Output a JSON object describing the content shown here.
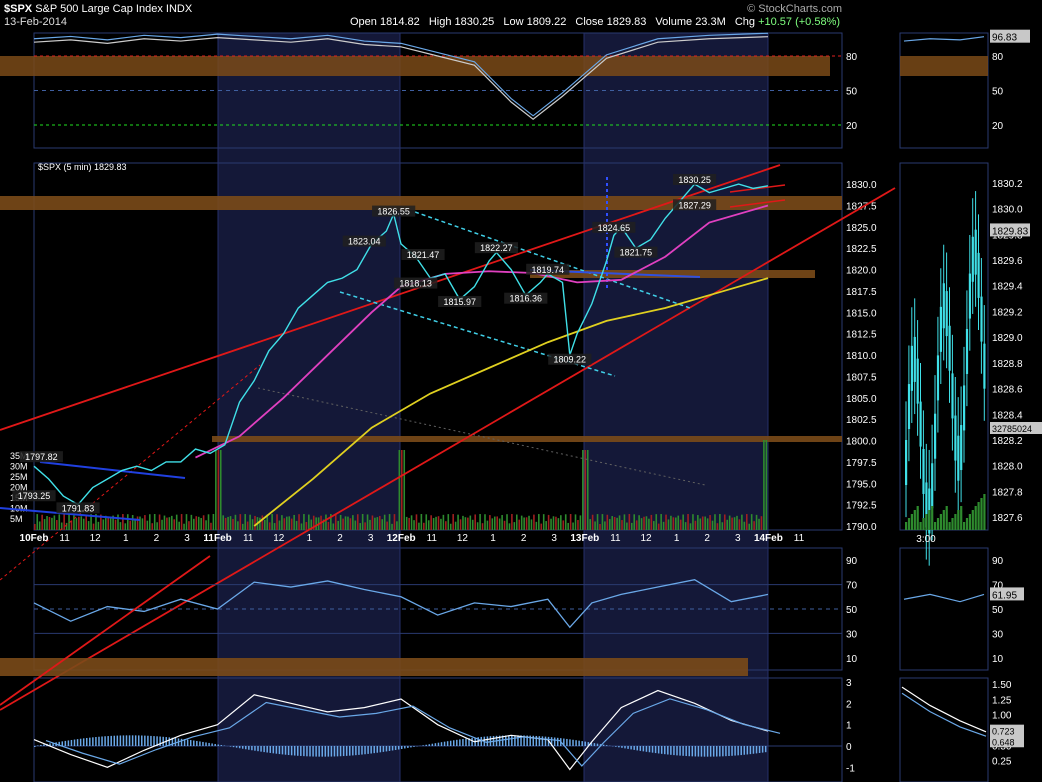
{
  "header": {
    "symbol": "$SPX",
    "name": "S&P 500 Large Cap Index",
    "exchange": "INDX",
    "date": "13-Feb-2014",
    "credit": "© StockCharts.com",
    "open_label": "Open",
    "open": "1814.82",
    "high_label": "High",
    "high": "1830.25",
    "low_label": "Low",
    "low": "1809.22",
    "close_label": "Close",
    "close": "1829.83",
    "volume_label": "Volume",
    "volume": "23.3M",
    "chg_label": "Chg",
    "chg": "+10.57 (+0.58%)"
  },
  "colors": {
    "background": "#000000",
    "price_line": "#40e0e8",
    "ma_fast": "#e040c0",
    "ma_slow": "#e0d020",
    "trendline": "#e01818",
    "resistance_band": "#7a4a18",
    "indicator": "#6aa8e8",
    "volume": "#2e8b2e",
    "grid": "#1a2a5a",
    "session_shade": "#141838"
  },
  "chart_data": [
    {
      "panel": "stochastic-top",
      "type": "line",
      "yticks": [
        20,
        50,
        80
      ],
      "ylim": [
        0,
        100
      ],
      "last_value": "96.83",
      "x": [
        0,
        0.05,
        0.1,
        0.15,
        0.2,
        0.25,
        0.3,
        0.35,
        0.4,
        0.45,
        0.5,
        0.55,
        0.6,
        0.65,
        0.68,
        0.72,
        0.78,
        0.85,
        0.92,
        1.0
      ],
      "values": [
        92,
        94,
        91,
        95,
        93,
        96,
        94,
        92,
        95,
        90,
        88,
        80,
        72,
        40,
        25,
        45,
        78,
        92,
        95,
        96.8
      ]
    },
    {
      "panel": "price",
      "type": "line",
      "title": "$SPX (5 min) 1829.83",
      "ylim": [
        1790,
        1832
      ],
      "yticks": [
        1790.0,
        1792.5,
        1795.0,
        1797.5,
        1800.0,
        1802.5,
        1805.0,
        1807.5,
        1810.0,
        1812.5,
        1815.0,
        1817.5,
        1820.0,
        1822.5,
        1825.0,
        1827.5,
        1830.0
      ],
      "xticks": [
        "10Feb",
        "11",
        "12",
        "1",
        "2",
        "3",
        "11Feb",
        "11",
        "12",
        "1",
        "2",
        "3",
        "12Feb",
        "11",
        "12",
        "1",
        "2",
        "3",
        "13Feb",
        "11",
        "12",
        "1",
        "2",
        "3",
        "14Feb",
        "11"
      ],
      "annotations": [
        {
          "label": "1797.82",
          "x": 0.01,
          "y": 1797.82
        },
        {
          "label": "1793.25",
          "x": 0.0,
          "y": 1793.25
        },
        {
          "label": "1791.83",
          "x": 0.06,
          "y": 1791.83
        },
        {
          "label": "1823.04",
          "x": 0.45,
          "y": 1823.04
        },
        {
          "label": "1826.55",
          "x": 0.49,
          "y": 1826.55
        },
        {
          "label": "1821.47",
          "x": 0.53,
          "y": 1821.47
        },
        {
          "label": "1818.13",
          "x": 0.52,
          "y": 1818.13
        },
        {
          "label": "1815.97",
          "x": 0.58,
          "y": 1815.97
        },
        {
          "label": "1822.27",
          "x": 0.63,
          "y": 1822.27
        },
        {
          "label": "1819.74",
          "x": 0.7,
          "y": 1819.74
        },
        {
          "label": "1816.36",
          "x": 0.67,
          "y": 1816.36
        },
        {
          "label": "1809.22",
          "x": 0.73,
          "y": 1809.22
        },
        {
          "label": "1824.65",
          "x": 0.79,
          "y": 1824.65
        },
        {
          "label": "1821.75",
          "x": 0.82,
          "y": 1821.75
        },
        {
          "label": "1830.25",
          "x": 0.9,
          "y": 1830.25
        },
        {
          "label": "1827.29",
          "x": 0.9,
          "y": 1827.29
        }
      ],
      "series": [
        {
          "type": "line",
          "x": [
            0.0,
            0.02,
            0.04,
            0.06,
            0.08,
            0.1,
            0.12,
            0.14,
            0.16,
            0.18,
            0.2,
            0.22,
            0.24,
            0.26,
            0.28,
            0.3,
            0.32,
            0.34,
            0.36,
            0.38,
            0.4,
            0.42,
            0.44,
            0.46,
            0.48,
            0.49,
            0.5,
            0.52,
            0.54,
            0.56,
            0.58,
            0.6,
            0.62,
            0.63,
            0.65,
            0.67,
            0.69,
            0.7,
            0.72,
            0.73,
            0.74,
            0.76,
            0.78,
            0.79,
            0.8,
            0.82,
            0.84,
            0.86,
            0.88,
            0.9,
            0.92,
            0.94,
            0.96,
            0.98,
            1.0
          ],
          "values": [
            1797.0,
            1795.5,
            1793.5,
            1792.5,
            1794.5,
            1795.5,
            1796.5,
            1797.0,
            1796.5,
            1797.5,
            1797.5,
            1799.0,
            1798.5,
            1799.5,
            1804.5,
            1807.0,
            1810.5,
            1812.5,
            1815.5,
            1817.0,
            1818.5,
            1819.0,
            1820.0,
            1823.0,
            1824.5,
            1826.5,
            1823.0,
            1821.5,
            1819.0,
            1819.5,
            1816.5,
            1818.0,
            1821.0,
            1822.0,
            1820.0,
            1817.0,
            1818.5,
            1819.5,
            1818.5,
            1810.0,
            1812.5,
            1816.0,
            1821.0,
            1824.0,
            1825.0,
            1822.5,
            1823.5,
            1826.0,
            1828.0,
            1830.0,
            1829.0,
            1829.5,
            1830.0,
            1829.5,
            1829.8
          ]
        },
        {
          "type": "line",
          "x": [
            0.22,
            0.28,
            0.34,
            0.4,
            0.46,
            0.5,
            0.56,
            0.62,
            0.68,
            0.74,
            0.8,
            0.86,
            0.92,
            1.0
          ],
          "values": [
            1798.0,
            1800.5,
            1805.0,
            1810.0,
            1815.0,
            1818.0,
            1819.5,
            1819.8,
            1819.6,
            1818.5,
            1818.8,
            1821.5,
            1825.5,
            1827.5
          ]
        },
        {
          "type": "line",
          "x": [
            0.3,
            0.38,
            0.46,
            0.54,
            0.62,
            0.7,
            0.78,
            0.86,
            0.94,
            1.0
          ],
          "values": [
            1790.0,
            1795.5,
            1801.5,
            1805.5,
            1808.5,
            1811.5,
            1814.0,
            1815.5,
            1817.5,
            1819.0
          ]
        }
      ],
      "volume_yticks": [
        "5M",
        "10M",
        "15M",
        "20M",
        "25M",
        "30M",
        "35M"
      ]
    },
    {
      "panel": "intraday-right",
      "type": "bar",
      "yticks": [
        1827.6,
        1827.8,
        1828.0,
        1828.2,
        1828.4,
        1828.6,
        1828.8,
        1829.0,
        1829.2,
        1829.4,
        1829.6,
        1829.8,
        1830.0,
        1830.2
      ],
      "last_value": "1829.83",
      "volume_value": "32785024",
      "xtick": "3:00"
    },
    {
      "panel": "rsi",
      "type": "line",
      "yticks": [
        10,
        30,
        50,
        70,
        90
      ],
      "ylim": [
        0,
        100
      ],
      "last_value": "61.95",
      "x": [
        0.0,
        0.05,
        0.1,
        0.15,
        0.2,
        0.25,
        0.3,
        0.35,
        0.4,
        0.45,
        0.5,
        0.55,
        0.6,
        0.65,
        0.7,
        0.73,
        0.76,
        0.8,
        0.85,
        0.9,
        0.95,
        1.0
      ],
      "values": [
        55,
        40,
        52,
        48,
        58,
        50,
        72,
        68,
        73,
        66,
        60,
        45,
        55,
        52,
        58,
        35,
        55,
        62,
        68,
        74,
        56,
        61.95
      ]
    },
    {
      "panel": "macd",
      "type": "line",
      "yticks": [
        -1,
        0,
        1,
        2,
        3
      ],
      "ylim": [
        -1.5,
        3
      ],
      "right_yticks": [
        0.25,
        0.5,
        0.75,
        1.0,
        1.25,
        1.5
      ],
      "last_values": [
        "0.723",
        "0.648"
      ],
      "x": [
        0.0,
        0.05,
        0.1,
        0.15,
        0.2,
        0.25,
        0.3,
        0.35,
        0.4,
        0.45,
        0.5,
        0.55,
        0.6,
        0.65,
        0.7,
        0.73,
        0.76,
        0.8,
        0.85,
        0.9,
        0.95,
        1.0
      ],
      "values": [
        0.3,
        -0.4,
        -1.0,
        -0.2,
        0.5,
        1.0,
        2.4,
        2.0,
        1.6,
        1.8,
        2.2,
        1.0,
        0.2,
        0.5,
        0.3,
        -1.1,
        0.2,
        1.8,
        2.6,
        2.0,
        1.2,
        0.7
      ]
    }
  ]
}
